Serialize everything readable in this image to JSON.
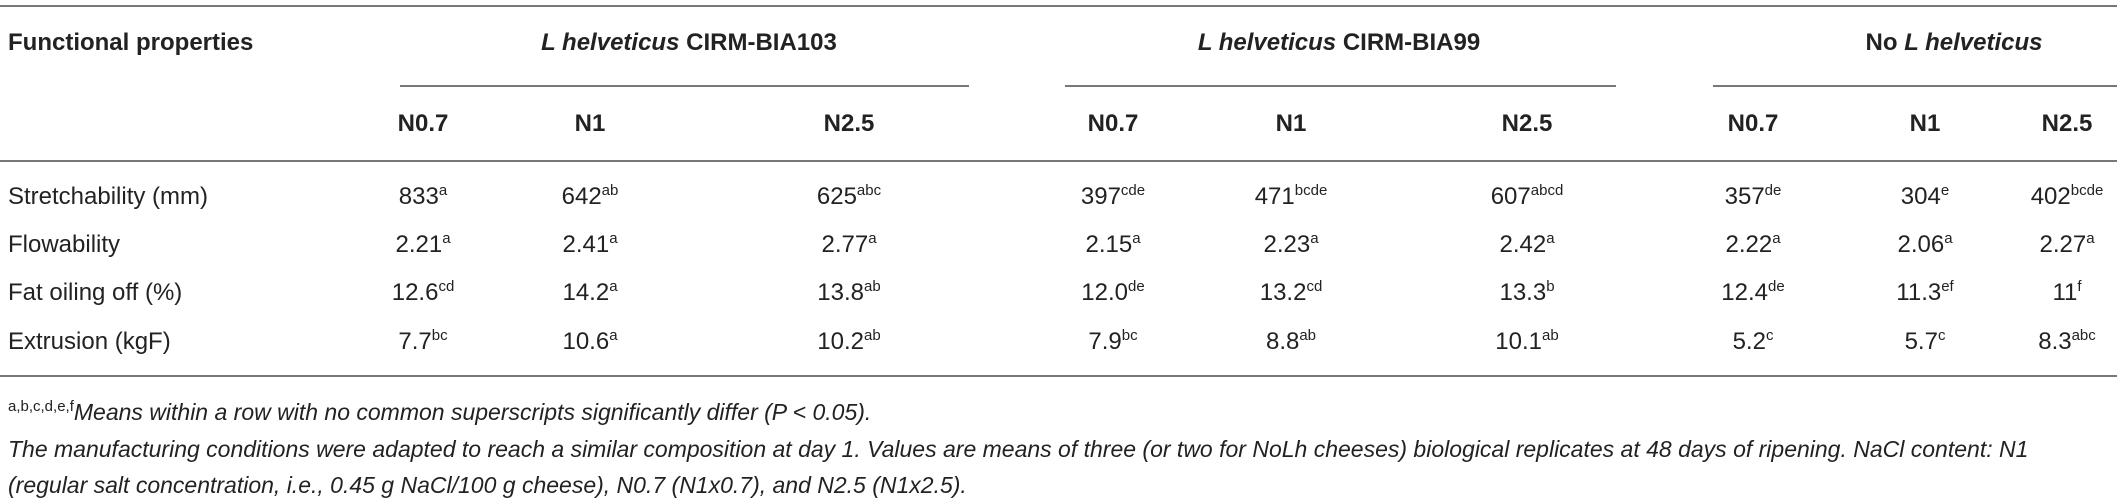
{
  "table": {
    "header": {
      "label": "Functional properties",
      "groups": [
        {
          "title": [
            {
              "text": "L helveticus",
              "italic": true
            },
            {
              "text": "CIRM-BIA103"
            }
          ],
          "columns": [
            "N0.7",
            "N1",
            "N2.5"
          ]
        },
        {
          "title": [
            {
              "text": "L helveticus",
              "italic": true
            },
            {
              "text": "CIRM-BIA99"
            }
          ],
          "columns": [
            "N0.7",
            "N1",
            "N2.5"
          ]
        },
        {
          "title": [
            {
              "text": "No"
            },
            {
              "text": "L helveticus",
              "italic": true
            }
          ],
          "columns": [
            "N0.7",
            "N1",
            "N2.5"
          ]
        }
      ]
    },
    "rows": [
      {
        "label": "Stretchability (mm)",
        "cells": [
          {
            "value": "833",
            "sup": "a"
          },
          {
            "value": "642",
            "sup": "ab"
          },
          {
            "value": "625",
            "sup": "abc"
          },
          {
            "value": "397",
            "sup": "cde"
          },
          {
            "value": "471",
            "sup": "bcde"
          },
          {
            "value": "607",
            "sup": "abcd"
          },
          {
            "value": "357",
            "sup": "de"
          },
          {
            "value": "304",
            "sup": "e"
          },
          {
            "value": "402",
            "sup": "bcde"
          }
        ]
      },
      {
        "label": "Flowability",
        "cells": [
          {
            "value": "2.21",
            "sup": "a"
          },
          {
            "value": "2.41",
            "sup": "a"
          },
          {
            "value": "2.77",
            "sup": "a"
          },
          {
            "value": "2.15",
            "sup": "a"
          },
          {
            "value": "2.23",
            "sup": "a"
          },
          {
            "value": "2.42",
            "sup": "a"
          },
          {
            "value": "2.22",
            "sup": "a"
          },
          {
            "value": "2.06",
            "sup": "a"
          },
          {
            "value": "2.27",
            "sup": "a"
          }
        ]
      },
      {
        "label": "Fat oiling off (%)",
        "cells": [
          {
            "value": "12.6",
            "sup": "cd"
          },
          {
            "value": "14.2",
            "sup": "a"
          },
          {
            "value": "13.8",
            "sup": "ab"
          },
          {
            "value": "12.0",
            "sup": "de"
          },
          {
            "value": "13.2",
            "sup": "cd"
          },
          {
            "value": "13.3",
            "sup": "b"
          },
          {
            "value": "12.4",
            "sup": "de"
          },
          {
            "value": "11.3",
            "sup": "ef"
          },
          {
            "value": "11",
            "sup": "f"
          }
        ]
      },
      {
        "label": "Extrusion (kgF)",
        "cells": [
          {
            "value": "7.7",
            "sup": "bc"
          },
          {
            "value": "10.6",
            "sup": "a"
          },
          {
            "value": "10.2",
            "sup": "ab"
          },
          {
            "value": "7.9",
            "sup": "bc"
          },
          {
            "value": "8.8",
            "sup": "ab"
          },
          {
            "value": "10.1",
            "sup": "ab"
          },
          {
            "value": "5.2",
            "sup": "c"
          },
          {
            "value": "5.7",
            "sup": "c"
          },
          {
            "value": "8.3",
            "sup": "abc"
          }
        ]
      }
    ]
  },
  "footnotes": {
    "superscripts": "a,b,c,d,e,f",
    "means_note": "Means within a row with no common superscripts significantly differ (P < 0.05).",
    "notes": "The manufacturing conditions were adapted to reach a similar composition at day 1. Values are means of three (or two for NoLh cheeses) biological replicates at 48 days of ripening. NaCl content: N1 (regular salt concentration, i.e., 0.45 g NaCl/100 g cheese), N0.7 (N1x0.7), and N2.5 (N1x2.5)."
  }
}
